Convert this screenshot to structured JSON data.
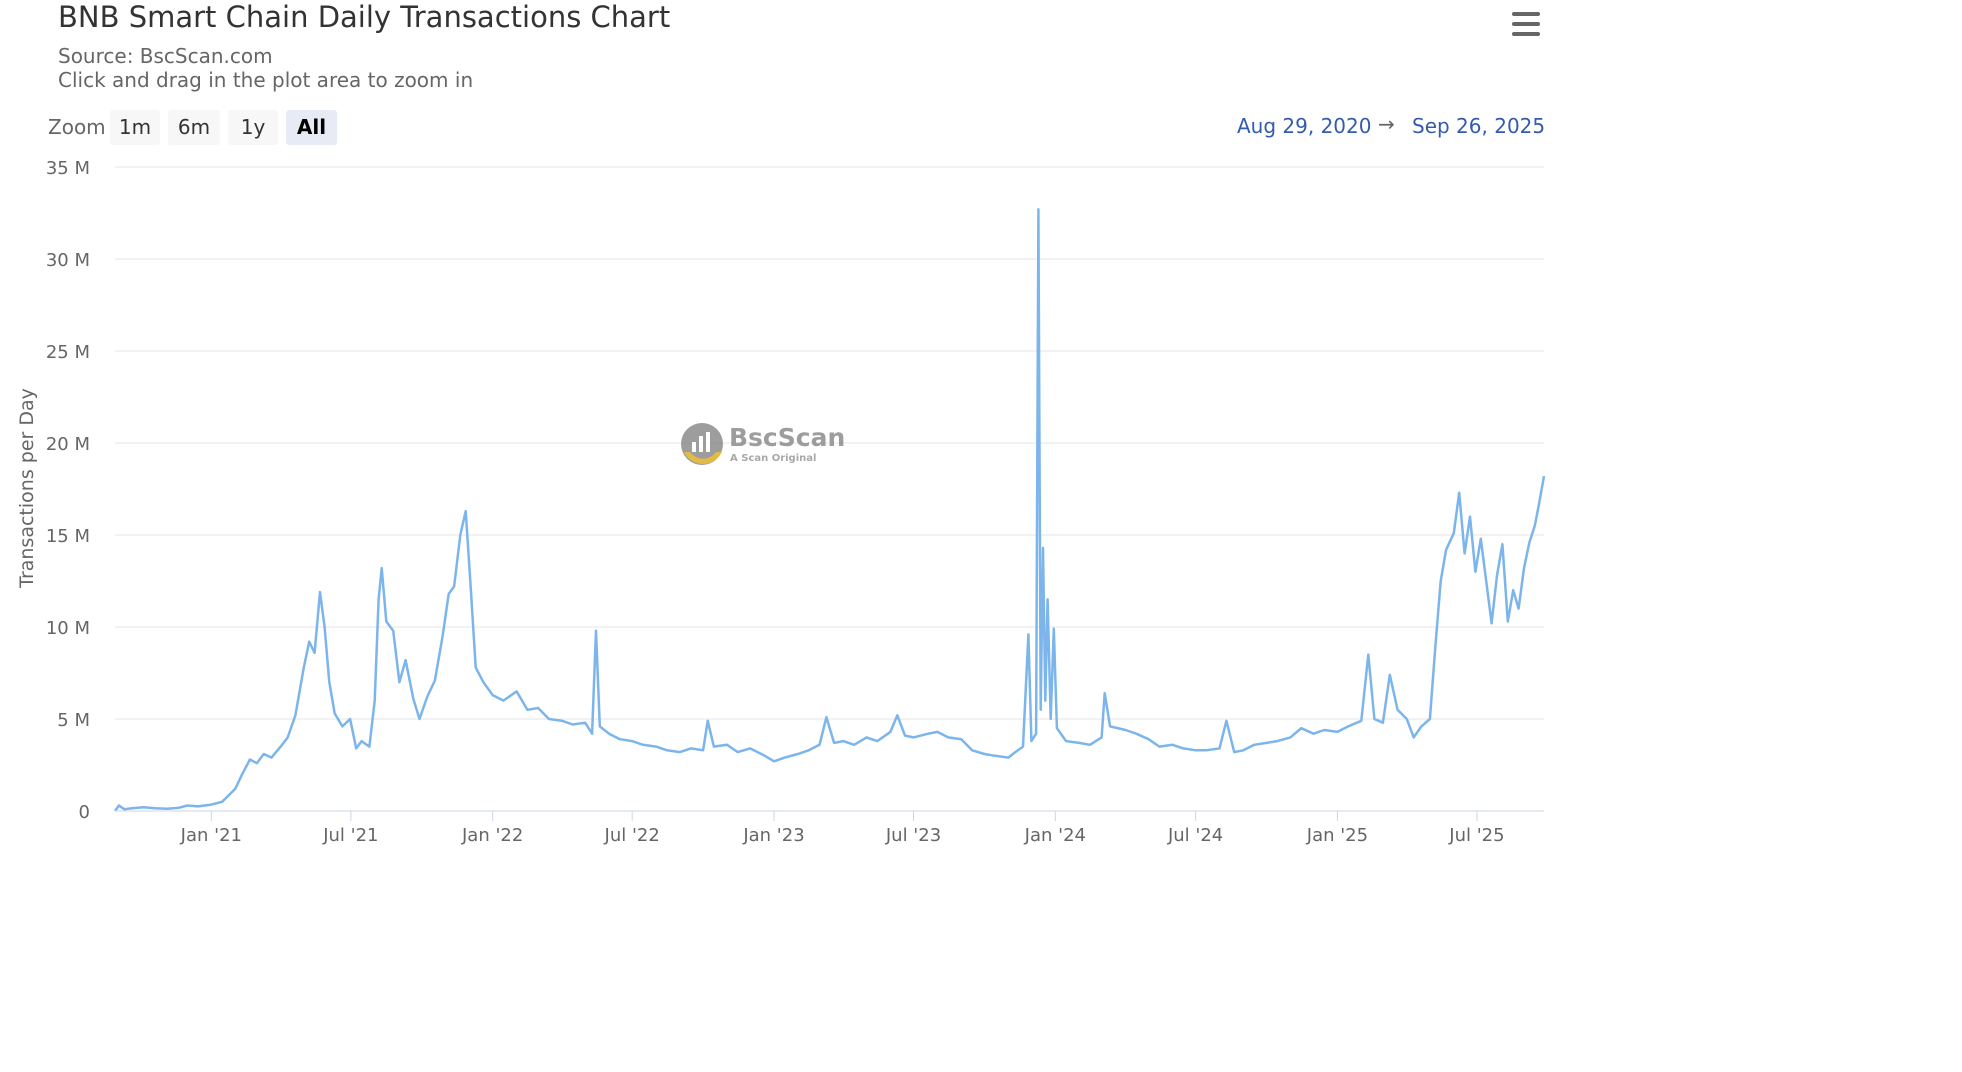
{
  "header": {
    "title": "BNB Smart Chain Daily Transactions Chart",
    "source": "Source: BscScan.com",
    "hint": "Click and drag in the plot area to zoom in",
    "menu_icon": "hamburger-menu-icon"
  },
  "zoom": {
    "label": "Zoom",
    "buttons": [
      "1m",
      "6m",
      "1y",
      "All"
    ],
    "active": "All"
  },
  "range": {
    "from": "Aug 29, 2020",
    "arrow": "→",
    "to": "Sep 26, 2025"
  },
  "watermark": {
    "name": "BscScan",
    "tagline": "A Scan Original"
  },
  "colors": {
    "series": "#7cb5ec",
    "grid": "#e6e6e6",
    "range_text": "#335cad",
    "active_zoom": "#e6ebf5"
  },
  "chart_data": {
    "type": "line",
    "title": "BNB Smart Chain Daily Transactions Chart",
    "subtitle": "Source: BscScan.com",
    "xlabel": "",
    "ylabel": "Transactions per Day",
    "x_range": [
      "2020-08-29",
      "2025-09-26"
    ],
    "ylim": [
      0,
      35000000
    ],
    "y_ticks": [
      0,
      5000000,
      10000000,
      15000000,
      20000000,
      25000000,
      30000000,
      35000000
    ],
    "y_tick_labels": [
      "0",
      "5 M",
      "10 M",
      "15 M",
      "20 M",
      "25 M",
      "30 M",
      "35 M"
    ],
    "x_ticks": [
      "2021-01-01",
      "2021-07-01",
      "2022-01-01",
      "2022-07-01",
      "2023-01-01",
      "2023-07-01",
      "2024-01-01",
      "2024-07-01",
      "2025-01-01",
      "2025-07-01"
    ],
    "x_tick_labels": [
      "Jan '21",
      "Jul '21",
      "Jan '22",
      "Jul '22",
      "Jan '23",
      "Jul '23",
      "Jan '24",
      "Jul '24",
      "Jan '25",
      "Jul '25"
    ],
    "grid": true,
    "legend": "none",
    "series": [
      {
        "points": [
          [
            "2020-08-29",
            0.0
          ],
          [
            "2020-09-03",
            0.3
          ],
          [
            "2020-09-10",
            0.1
          ],
          [
            "2020-09-20",
            0.15
          ],
          [
            "2020-10-05",
            0.2
          ],
          [
            "2020-10-20",
            0.15
          ],
          [
            "2020-11-05",
            0.12
          ],
          [
            "2020-11-20",
            0.18
          ],
          [
            "2020-12-01",
            0.3
          ],
          [
            "2020-12-15",
            0.25
          ],
          [
            "2021-01-01",
            0.35
          ],
          [
            "2021-01-15",
            0.5
          ],
          [
            "2021-02-01",
            1.2
          ],
          [
            "2021-02-10",
            2.0
          ],
          [
            "2021-02-20",
            2.8
          ],
          [
            "2021-03-01",
            2.6
          ],
          [
            "2021-03-10",
            3.1
          ],
          [
            "2021-03-20",
            2.9
          ],
          [
            "2021-04-01",
            3.5
          ],
          [
            "2021-04-10",
            4.0
          ],
          [
            "2021-04-20",
            5.2
          ],
          [
            "2021-05-01",
            7.8
          ],
          [
            "2021-05-08",
            9.2
          ],
          [
            "2021-05-15",
            8.6
          ],
          [
            "2021-05-22",
            11.9
          ],
          [
            "2021-05-28",
            10.0
          ],
          [
            "2021-06-03",
            7.0
          ],
          [
            "2021-06-10",
            5.3
          ],
          [
            "2021-06-20",
            4.6
          ],
          [
            "2021-06-30",
            5.0
          ],
          [
            "2021-07-08",
            3.4
          ],
          [
            "2021-07-15",
            3.8
          ],
          [
            "2021-07-25",
            3.5
          ],
          [
            "2021-08-01",
            6.0
          ],
          [
            "2021-08-06",
            11.5
          ],
          [
            "2021-08-10",
            13.2
          ],
          [
            "2021-08-16",
            10.3
          ],
          [
            "2021-08-25",
            9.8
          ],
          [
            "2021-09-02",
            7.0
          ],
          [
            "2021-09-10",
            8.2
          ],
          [
            "2021-09-20",
            6.1
          ],
          [
            "2021-09-28",
            5.0
          ],
          [
            "2021-10-08",
            6.2
          ],
          [
            "2021-10-18",
            7.1
          ],
          [
            "2021-10-28",
            9.5
          ],
          [
            "2021-11-05",
            11.8
          ],
          [
            "2021-11-12",
            12.2
          ],
          [
            "2021-11-20",
            15.0
          ],
          [
            "2021-11-27",
            16.3
          ],
          [
            "2021-12-03",
            12.5
          ],
          [
            "2021-12-10",
            7.8
          ],
          [
            "2021-12-20",
            7.0
          ],
          [
            "2022-01-01",
            6.3
          ],
          [
            "2022-01-15",
            6.0
          ],
          [
            "2022-02-01",
            6.5
          ],
          [
            "2022-02-15",
            5.5
          ],
          [
            "2022-03-01",
            5.6
          ],
          [
            "2022-03-15",
            5.0
          ],
          [
            "2022-04-01",
            4.9
          ],
          [
            "2022-04-15",
            4.7
          ],
          [
            "2022-05-01",
            4.8
          ],
          [
            "2022-05-10",
            4.2
          ],
          [
            "2022-05-15",
            9.8
          ],
          [
            "2022-05-20",
            4.6
          ],
          [
            "2022-06-01",
            4.2
          ],
          [
            "2022-06-15",
            3.9
          ],
          [
            "2022-07-01",
            3.8
          ],
          [
            "2022-07-15",
            3.6
          ],
          [
            "2022-08-01",
            3.5
          ],
          [
            "2022-08-15",
            3.3
          ],
          [
            "2022-09-01",
            3.2
          ],
          [
            "2022-09-15",
            3.4
          ],
          [
            "2022-10-01",
            3.3
          ],
          [
            "2022-10-07",
            4.9
          ],
          [
            "2022-10-15",
            3.5
          ],
          [
            "2022-11-01",
            3.6
          ],
          [
            "2022-11-15",
            3.2
          ],
          [
            "2022-12-01",
            3.4
          ],
          [
            "2022-12-20",
            3.0
          ],
          [
            "2023-01-01",
            2.7
          ],
          [
            "2023-01-15",
            2.9
          ],
          [
            "2023-02-01",
            3.1
          ],
          [
            "2023-02-15",
            3.3
          ],
          [
            "2023-03-01",
            3.6
          ],
          [
            "2023-03-10",
            5.1
          ],
          [
            "2023-03-20",
            3.7
          ],
          [
            "2023-04-01",
            3.8
          ],
          [
            "2023-04-15",
            3.6
          ],
          [
            "2023-05-01",
            4.0
          ],
          [
            "2023-05-15",
            3.8
          ],
          [
            "2023-06-01",
            4.3
          ],
          [
            "2023-06-10",
            5.2
          ],
          [
            "2023-06-20",
            4.1
          ],
          [
            "2023-07-01",
            4.0
          ],
          [
            "2023-07-20",
            4.2
          ],
          [
            "2023-08-01",
            4.3
          ],
          [
            "2023-08-15",
            4.0
          ],
          [
            "2023-09-01",
            3.9
          ],
          [
            "2023-09-15",
            3.3
          ],
          [
            "2023-10-01",
            3.1
          ],
          [
            "2023-10-15",
            3.0
          ],
          [
            "2023-11-01",
            2.9
          ],
          [
            "2023-11-10",
            3.2
          ],
          [
            "2023-11-20",
            3.5
          ],
          [
            "2023-11-27",
            9.6
          ],
          [
            "2023-12-01",
            3.8
          ],
          [
            "2023-12-07",
            4.2
          ],
          [
            "2023-12-10",
            32.7
          ],
          [
            "2023-12-13",
            5.5
          ],
          [
            "2023-12-16",
            14.3
          ],
          [
            "2023-12-19",
            6.0
          ],
          [
            "2023-12-22",
            11.5
          ],
          [
            "2023-12-26",
            5.0
          ],
          [
            "2023-12-30",
            9.9
          ],
          [
            "2024-01-03",
            4.5
          ],
          [
            "2024-01-15",
            3.8
          ],
          [
            "2024-02-01",
            3.7
          ],
          [
            "2024-02-15",
            3.6
          ],
          [
            "2024-03-01",
            4.0
          ],
          [
            "2024-03-05",
            6.4
          ],
          [
            "2024-03-12",
            4.6
          ],
          [
            "2024-04-01",
            4.4
          ],
          [
            "2024-04-15",
            4.2
          ],
          [
            "2024-05-01",
            3.9
          ],
          [
            "2024-05-15",
            3.5
          ],
          [
            "2024-06-01",
            3.6
          ],
          [
            "2024-06-15",
            3.4
          ],
          [
            "2024-07-01",
            3.3
          ],
          [
            "2024-07-15",
            3.3
          ],
          [
            "2024-08-01",
            3.4
          ],
          [
            "2024-08-10",
            4.9
          ],
          [
            "2024-08-20",
            3.2
          ],
          [
            "2024-09-01",
            3.3
          ],
          [
            "2024-09-15",
            3.6
          ],
          [
            "2024-10-01",
            3.7
          ],
          [
            "2024-10-15",
            3.8
          ],
          [
            "2024-11-01",
            4.0
          ],
          [
            "2024-11-15",
            4.5
          ],
          [
            "2024-12-01",
            4.2
          ],
          [
            "2024-12-15",
            4.4
          ],
          [
            "2025-01-01",
            4.3
          ],
          [
            "2025-01-15",
            4.6
          ],
          [
            "2025-02-01",
            4.9
          ],
          [
            "2025-02-10",
            8.5
          ],
          [
            "2025-02-18",
            5.0
          ],
          [
            "2025-03-01",
            4.8
          ],
          [
            "2025-03-10",
            7.4
          ],
          [
            "2025-03-20",
            5.5
          ],
          [
            "2025-04-01",
            5.0
          ],
          [
            "2025-04-10",
            4.0
          ],
          [
            "2025-04-20",
            4.6
          ],
          [
            "2025-05-01",
            5.0
          ],
          [
            "2025-05-08",
            8.9
          ],
          [
            "2025-05-15",
            12.5
          ],
          [
            "2025-05-22",
            14.2
          ],
          [
            "2025-06-01",
            15.1
          ],
          [
            "2025-06-08",
            17.3
          ],
          [
            "2025-06-15",
            14.0
          ],
          [
            "2025-06-22",
            16.0
          ],
          [
            "2025-06-29",
            13.0
          ],
          [
            "2025-07-06",
            14.8
          ],
          [
            "2025-07-13",
            12.5
          ],
          [
            "2025-07-20",
            10.2
          ],
          [
            "2025-07-27",
            12.8
          ],
          [
            "2025-08-03",
            14.5
          ],
          [
            "2025-08-10",
            10.3
          ],
          [
            "2025-08-17",
            12.0
          ],
          [
            "2025-08-24",
            11.0
          ],
          [
            "2025-08-31",
            13.2
          ],
          [
            "2025-09-07",
            14.6
          ],
          [
            "2025-09-14",
            15.5
          ],
          [
            "2025-09-20",
            16.8
          ],
          [
            "2025-09-26",
            18.2
          ]
        ],
        "unit": "M"
      }
    ]
  }
}
